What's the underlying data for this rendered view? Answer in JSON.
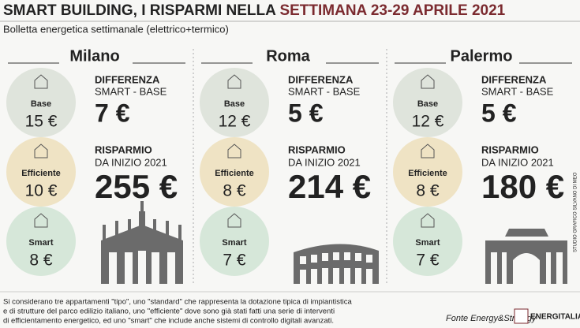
{
  "header": {
    "title_main": "SMART BUILDING, I RISPARMI NELLA",
    "title_period": "SETTIMANA 23-29 APRILE 2021",
    "subtitle": "Bolletta energetica settimanale (elettrico+termico)"
  },
  "cities": [
    {
      "name": "Milano",
      "base": {
        "label": "Base",
        "value": "15 €"
      },
      "efficiente": {
        "label": "Efficiente",
        "value": "10 €"
      },
      "smart": {
        "label": "Smart",
        "value": "8 €"
      },
      "difference": {
        "title": "DIFFERENZA",
        "subtitle": "SMART - BASE",
        "value": "7 €"
      },
      "savings": {
        "title": "RISPARMIO",
        "subtitle": "DA INIZIO 2021",
        "value": "255 €"
      }
    },
    {
      "name": "Roma",
      "base": {
        "label": "Base",
        "value": "12 €"
      },
      "efficiente": {
        "label": "Efficiente",
        "value": "8 €"
      },
      "smart": {
        "label": "Smart",
        "value": "7 €"
      },
      "difference": {
        "title": "DIFFERENZA",
        "subtitle": "SMART - BASE",
        "value": "5 €"
      },
      "savings": {
        "title": "RISPARMIO",
        "subtitle": "DA INIZIO 2021",
        "value": "214 €"
      }
    },
    {
      "name": "Palermo",
      "base": {
        "label": "Base",
        "value": "12 €"
      },
      "efficiente": {
        "label": "Efficiente",
        "value": "8 €"
      },
      "smart": {
        "label": "Smart",
        "value": "7 €"
      },
      "difference": {
        "title": "DIFFERENZA",
        "subtitle": "SMART - BASE",
        "value": "5 €"
      },
      "savings": {
        "title": "RISPARMIO",
        "subtitle": "DA INIZIO 2021",
        "value": "180 €"
      }
    }
  ],
  "footer": {
    "note": [
      "Si considerano tre appartamenti \"tipo\", uno \"standard\" che rappresenta la dotazione tipica di impiantistica",
      "e di strutture del parco edilizio italiano, uno \"efficiente\" dove sono già stati fatti una serie di interventi",
      "di efficientamento energetico, ed uno \"smart\" che include anche sistemi di controllo digitali avanzati."
    ],
    "source": "Fonte Energy&Strategy",
    "logo": "ENERGITALIA",
    "credit": "STUDIO GRAFICO SILVANO DI MEO"
  }
}
